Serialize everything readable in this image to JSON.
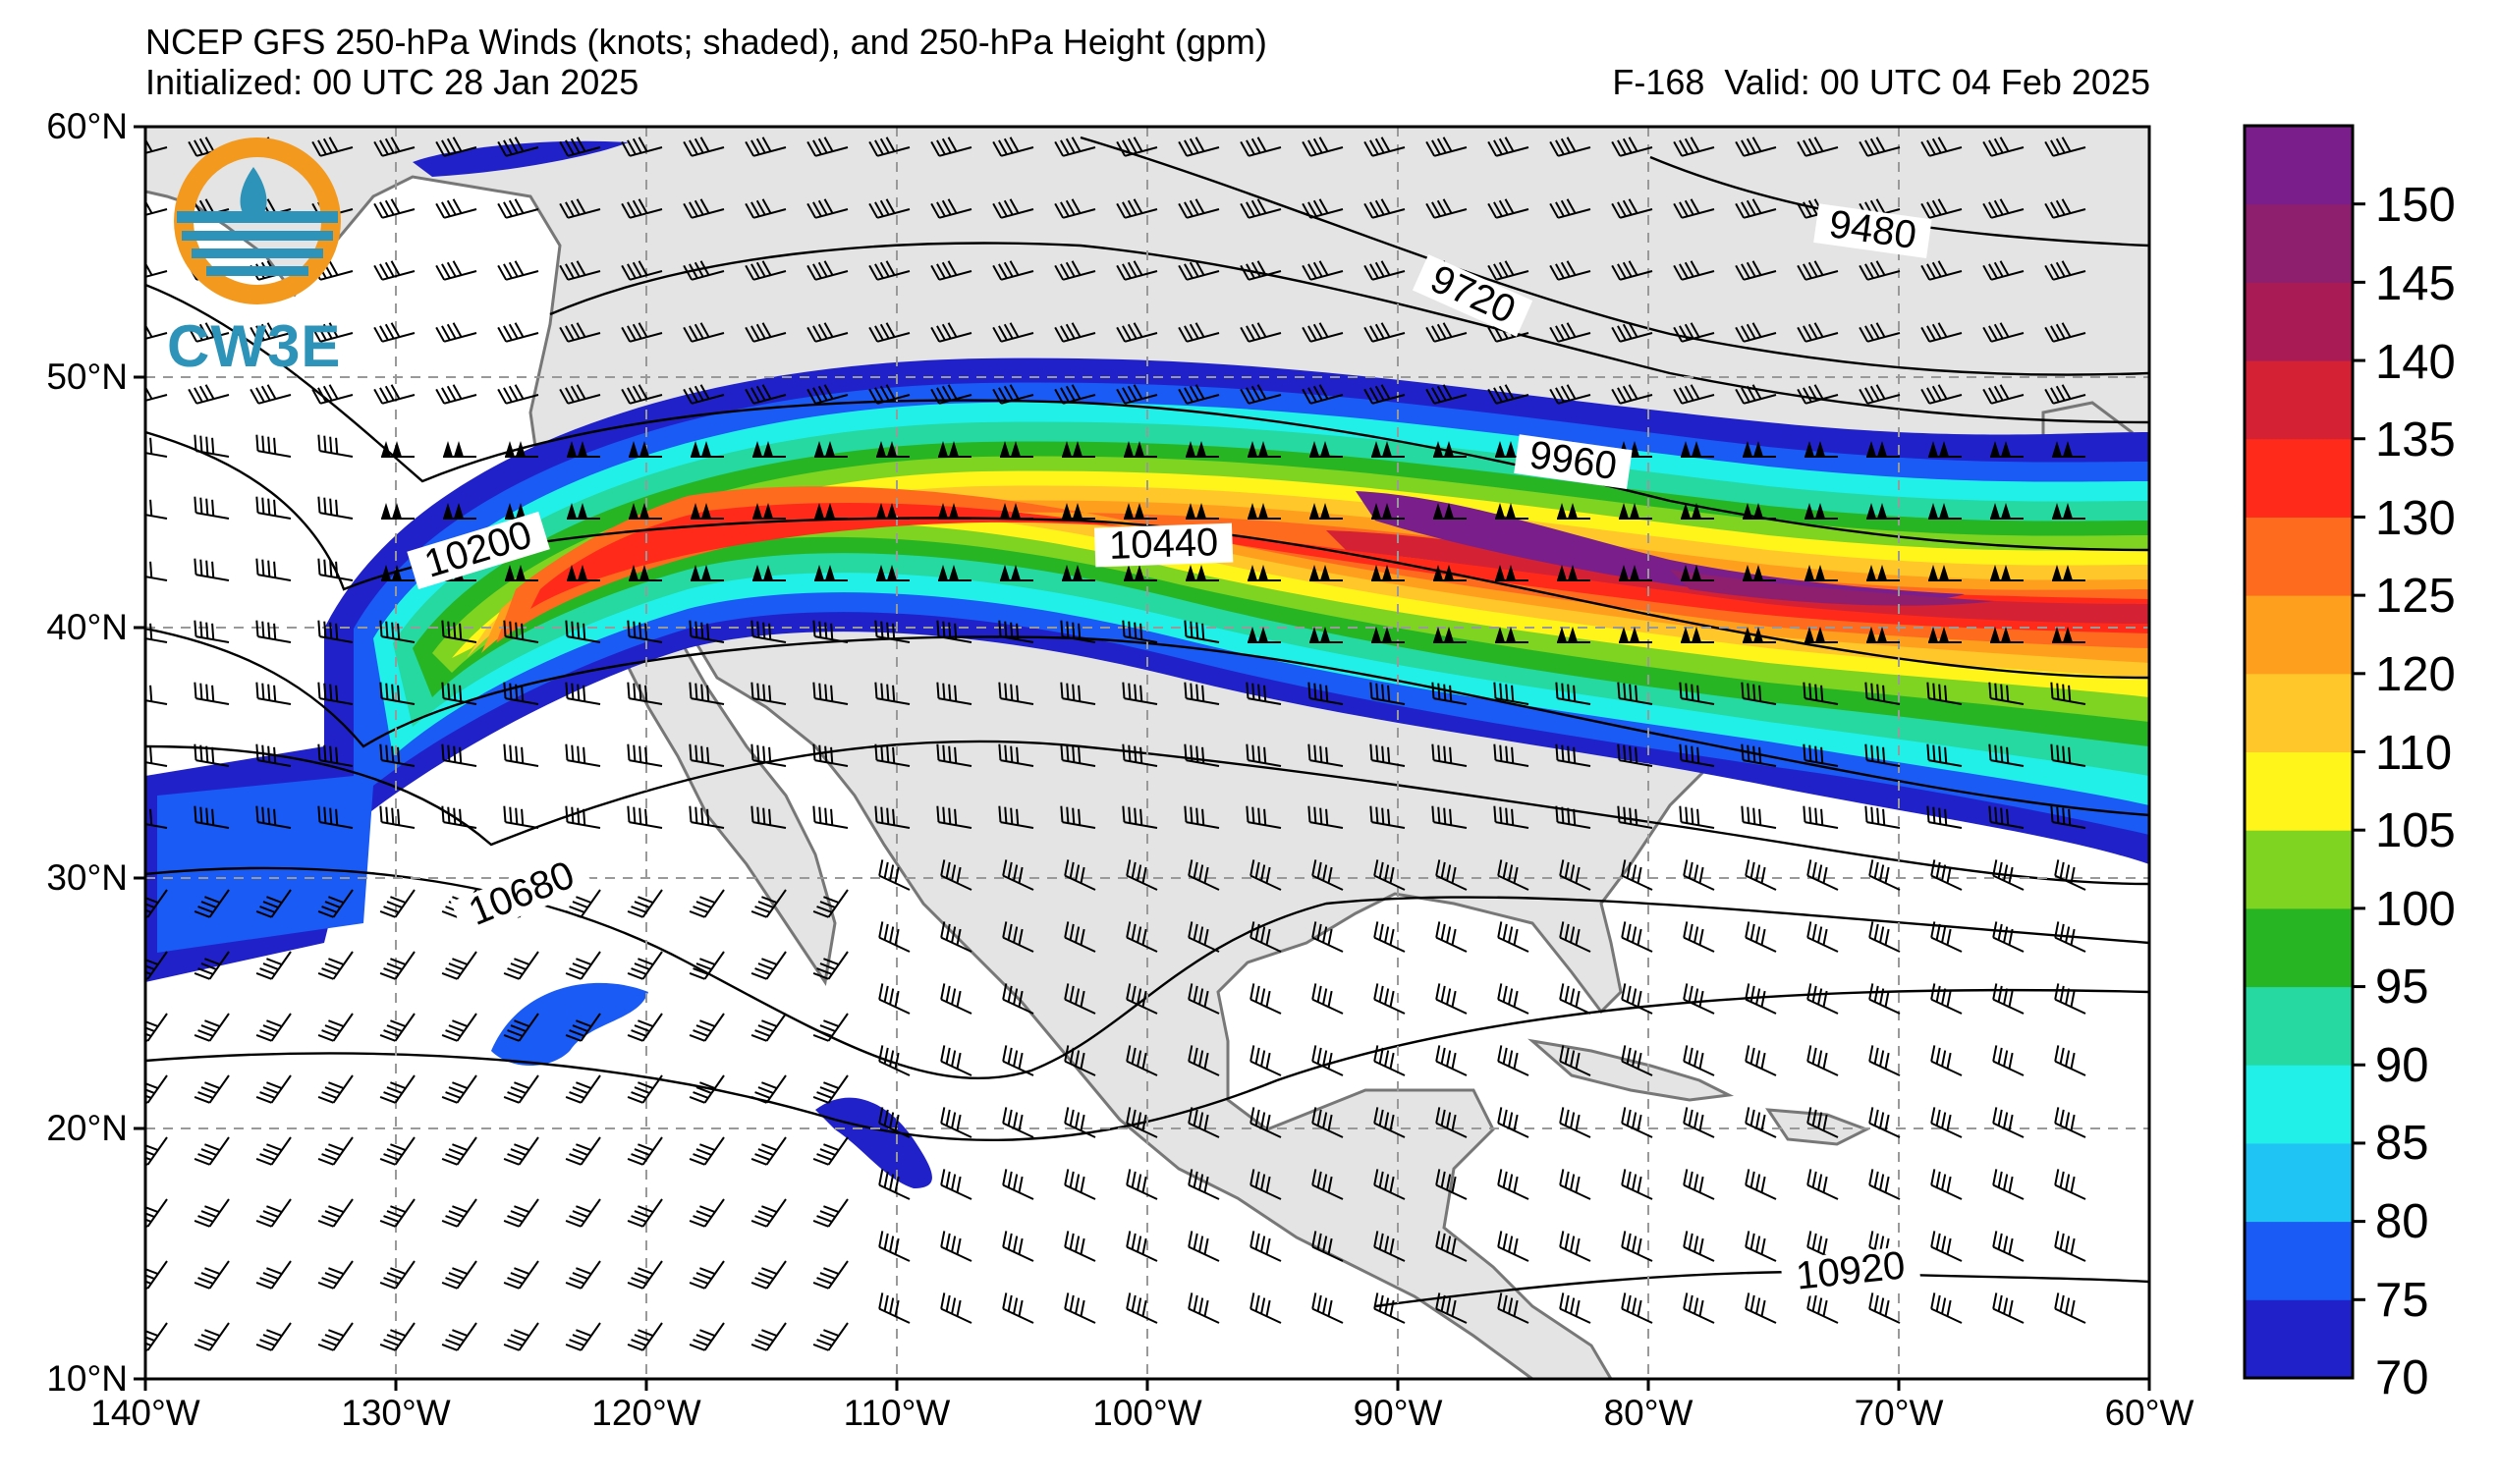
{
  "title": {
    "line1": "NCEP GFS 250-hPa Winds (knots; shaded), and 250-hPa Height (gpm)",
    "line2": "Initialized: 00 UTC 28 Jan 2025",
    "valid": "F-168  Valid: 00 UTC 04 Feb 2025"
  },
  "axes": {
    "lat_labels": [
      "60°N",
      "50°N",
      "40°N",
      "30°N",
      "20°N",
      "10°N"
    ],
    "lon_labels": [
      "140°W",
      "130°W",
      "120°W",
      "110°W",
      "100°W",
      "90°W",
      "80°W",
      "70°W",
      "60°W"
    ],
    "lat_range": [
      10,
      60
    ],
    "lon_range": [
      -140,
      -60
    ]
  },
  "contour_labels": {
    "c9480": "9480",
    "c9720": "9720",
    "c9960": "9960",
    "c10200": "10200",
    "c10440": "10440",
    "c10680": "10680",
    "c10920": "10920"
  },
  "colorbar": {
    "labels": [
      "150",
      "145",
      "140",
      "135",
      "130",
      "125",
      "120",
      "110",
      "105",
      "100",
      "95",
      "90",
      "85",
      "80",
      "75",
      "70"
    ],
    "colors": [
      "#7a1e8c",
      "#8e1f6e",
      "#a81b55",
      "#d42134",
      "#ff2a1a",
      "#ff6b1e",
      "#ff9f1e",
      "#ffc72a",
      "#fff51a",
      "#7fd321",
      "#27b523",
      "#25d9a0",
      "#21f0e8",
      "#1fc4f4",
      "#1a5af5",
      "#2021c9"
    ]
  },
  "logo": {
    "text": "CW3E"
  }
}
